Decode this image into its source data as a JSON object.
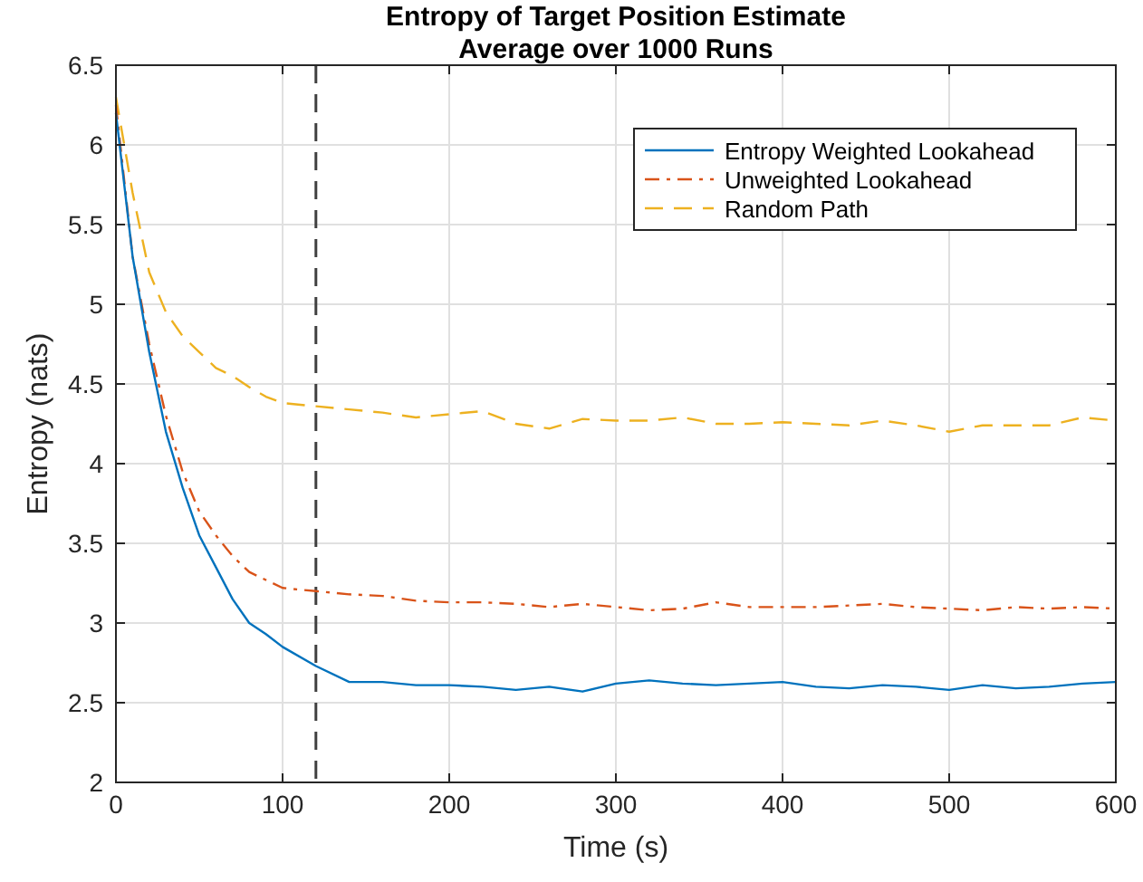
{
  "chart_data": {
    "type": "line",
    "title": "Entropy of Target Position Estimate\nAverage over 1000 Runs",
    "xlabel": "Time (s)",
    "ylabel": "Entropy (nats)",
    "x": [
      0,
      10,
      20,
      30,
      40,
      50,
      60,
      70,
      80,
      90,
      100,
      120,
      140,
      160,
      180,
      200,
      220,
      240,
      260,
      280,
      300,
      320,
      340,
      360,
      380,
      400,
      420,
      440,
      460,
      480,
      500,
      520,
      540,
      560,
      580,
      600
    ],
    "series": [
      {
        "name": "Entropy Weighted Lookahead",
        "color": "#0072bd",
        "line_style": "solid",
        "values": [
          6.2,
          5.3,
          4.7,
          4.2,
          3.85,
          3.55,
          3.35,
          3.15,
          3.0,
          2.93,
          2.85,
          2.73,
          2.63,
          2.63,
          2.61,
          2.61,
          2.6,
          2.58,
          2.6,
          2.57,
          2.62,
          2.64,
          2.62,
          2.61,
          2.62,
          2.63,
          2.6,
          2.59,
          2.61,
          2.6,
          2.58,
          2.61,
          2.59,
          2.6,
          2.62,
          2.63
        ]
      },
      {
        "name": "Unweighted Lookahead",
        "color": "#d95319",
        "line_style": "dashdot",
        "values": [
          6.25,
          5.3,
          4.75,
          4.3,
          3.95,
          3.7,
          3.55,
          3.42,
          3.32,
          3.27,
          3.22,
          3.2,
          3.18,
          3.17,
          3.14,
          3.13,
          3.13,
          3.12,
          3.1,
          3.12,
          3.1,
          3.08,
          3.09,
          3.13,
          3.1,
          3.1,
          3.1,
          3.11,
          3.12,
          3.1,
          3.09,
          3.08,
          3.1,
          3.09,
          3.1,
          3.09
        ]
      },
      {
        "name": "Random Path",
        "color": "#edb120",
        "line_style": "dashed",
        "values": [
          6.3,
          5.7,
          5.2,
          4.95,
          4.8,
          4.7,
          4.6,
          4.55,
          4.48,
          4.42,
          4.38,
          4.36,
          4.34,
          4.32,
          4.29,
          4.31,
          4.33,
          4.25,
          4.22,
          4.28,
          4.27,
          4.27,
          4.29,
          4.25,
          4.25,
          4.26,
          4.25,
          4.24,
          4.27,
          4.24,
          4.2,
          4.24,
          4.24,
          4.24,
          4.29,
          4.27
        ]
      }
    ],
    "xlim": [
      0,
      600
    ],
    "xticks": [
      0,
      100,
      200,
      300,
      400,
      500,
      600
    ],
    "ylim": [
      2,
      6.5
    ],
    "yticks": [
      2,
      2.5,
      3,
      3.5,
      4,
      4.5,
      5,
      5.5,
      6,
      6.5
    ],
    "ref_lines": [
      {
        "axis": "x",
        "value": 120,
        "color": "#404040",
        "line_style": "dashed"
      }
    ],
    "grid": true,
    "legend": "top right"
  }
}
